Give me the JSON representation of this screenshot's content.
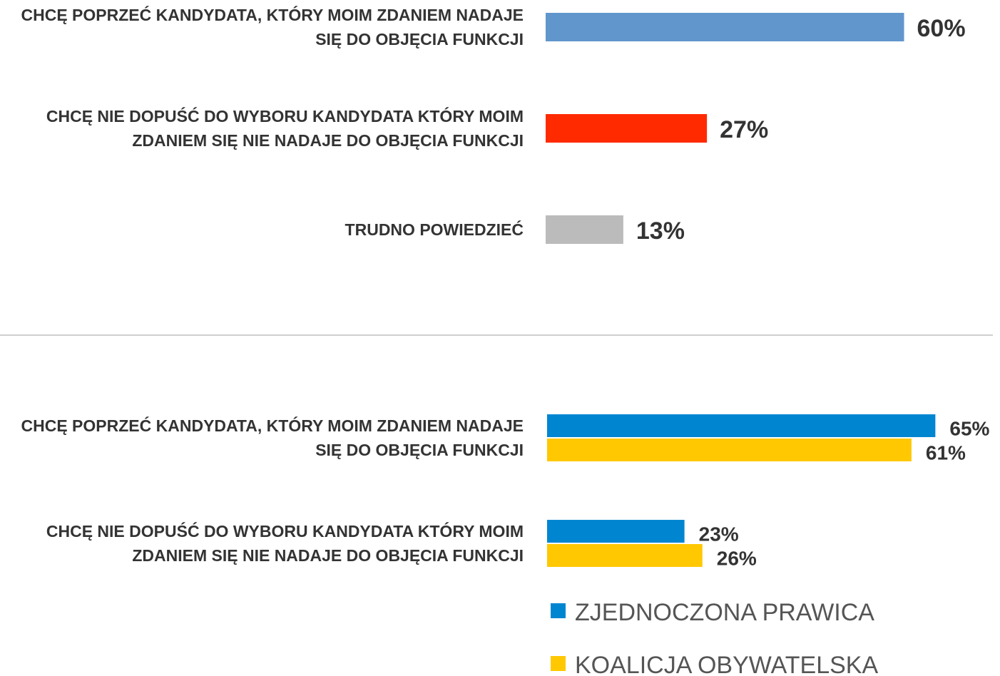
{
  "chart_data": [
    {
      "type": "bar",
      "categories": [
        "CHCĘ POPRZEĆ KANDYDATA, KTÓRY MOIM ZDANIEM NADAJE SIĘ DO OBJĘCIA FUNKCJI",
        "CHCĘ NIE DOPUŚĆ DO WYBORU KANDYDATA KTÓRY MOIM ZDANIEM SIĘ NIE NADAJE DO OBJĘCIA FUNKCJI",
        "TRUDNO POWIEDZIEĆ"
      ],
      "values": [
        60,
        27,
        13
      ],
      "value_labels": [
        "60%",
        "27%",
        "13%"
      ],
      "colors": [
        "#6096cc",
        "#ff2a00",
        "#bbbbbb"
      ]
    },
    {
      "type": "grouped_bar",
      "categories": [
        "CHCĘ POPRZEĆ KANDYDATA, KTÓRY MOIM ZDANIEM NADAJE SIĘ DO OBJĘCIA FUNKCJI",
        "CHCĘ NIE DOPUŚĆ DO WYBORU KANDYDATA KTÓRY MOIM ZDANIEM SIĘ NIE NADAJE DO OBJĘCIA FUNKCJI"
      ],
      "series": [
        {
          "name": "ZJEDNOCZONA PRAWICA",
          "color": "#0086d1",
          "values": [
            65,
            23
          ],
          "value_labels": [
            "65%",
            "23%"
          ]
        },
        {
          "name": "KOALICJA OBYWATELSKA",
          "color": "#ffc800",
          "values": [
            61,
            26
          ],
          "value_labels": [
            "61%",
            "26%"
          ]
        }
      ],
      "legend": "bottom"
    }
  ]
}
